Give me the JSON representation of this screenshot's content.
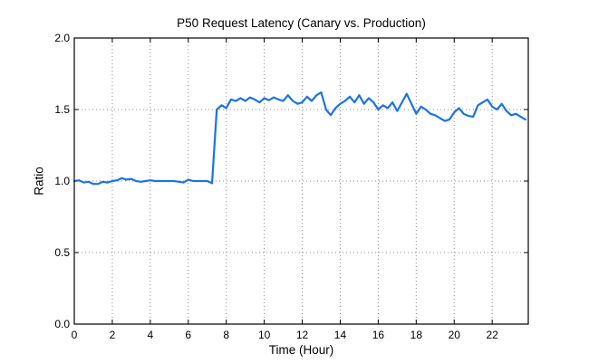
{
  "chart_data": {
    "type": "line",
    "title": "P50 Request Latency (Canary vs. Production)",
    "xlabel": "Time (Hour)",
    "ylabel": "Ratio",
    "xlim": [
      0,
      23.9
    ],
    "ylim": [
      0,
      2
    ],
    "xticks": [
      0,
      2,
      4,
      6,
      8,
      10,
      12,
      14,
      16,
      18,
      20,
      22
    ],
    "xtick_labels": [
      "0",
      "2",
      "4",
      "6",
      "8",
      "10",
      "12",
      "14",
      "16",
      "18",
      "20",
      "22"
    ],
    "yticks": [
      0,
      0.5,
      1,
      1.5,
      2
    ],
    "ytick_labels": [
      "0.0",
      "0.5",
      "1.0",
      "1.5",
      "2.0"
    ],
    "grid": true,
    "legend": false,
    "colors": {
      "line": "#1a73e8",
      "grid": "#8f8f8f",
      "frame": "#000000",
      "text": "#000000",
      "background": "#ffffff"
    },
    "series": [
      {
        "x_start": 0,
        "x_step": 0.25,
        "values": [
          1.0,
          1.005,
          0.99,
          0.995,
          0.98,
          0.98,
          0.995,
          0.99,
          1.0,
          1.005,
          1.02,
          1.01,
          1.015,
          1.0,
          0.995,
          1.0,
          1.005,
          1.0,
          1.0,
          1.0,
          1.0,
          1.0,
          0.995,
          0.99,
          1.01,
          1.0,
          1.0,
          1.0,
          1.0,
          0.985,
          1.5,
          1.53,
          1.51,
          1.57,
          1.56,
          1.58,
          1.56,
          1.585,
          1.57,
          1.55,
          1.58,
          1.565,
          1.585,
          1.57,
          1.56,
          1.6,
          1.56,
          1.54,
          1.55,
          1.59,
          1.56,
          1.6,
          1.62,
          1.5,
          1.46,
          1.51,
          1.54,
          1.56,
          1.59,
          1.55,
          1.6,
          1.54,
          1.58,
          1.55,
          1.5,
          1.53,
          1.51,
          1.55,
          1.49,
          1.55,
          1.61,
          1.54,
          1.47,
          1.52,
          1.5,
          1.47,
          1.46,
          1.44,
          1.42,
          1.43,
          1.48,
          1.51,
          1.47,
          1.455,
          1.45,
          1.53,
          1.55,
          1.57,
          1.52,
          1.5,
          1.54,
          1.49,
          1.46,
          1.47,
          1.45,
          1.43
        ]
      }
    ]
  }
}
